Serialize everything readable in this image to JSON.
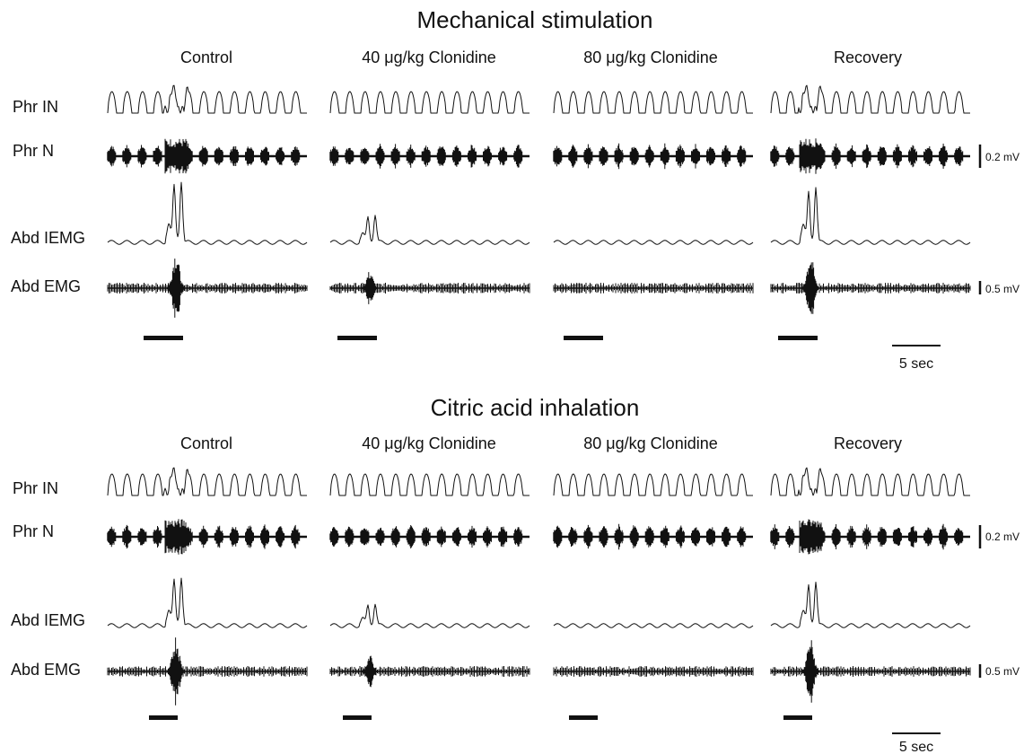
{
  "panels": [
    {
      "title": "Mechanical stimulation",
      "conditions": [
        "Control",
        "40 μg/kg Clonidine",
        "80 μg/kg Clonidine",
        "Recovery"
      ],
      "rows": [
        "Phr IN",
        "Phr N",
        "Abd IEMG",
        "Abd EMG"
      ],
      "phr_n_scale": "0.2 mV",
      "abd_emg_scale": "0.5 mV",
      "time_scale": "5 sec"
    },
    {
      "title": "Citric acid inhalation",
      "conditions": [
        "Control",
        "40 μg/kg Clonidine",
        "80 μg/kg Clonidine",
        "Recovery"
      ],
      "rows": [
        "Phr IN",
        "Phr N",
        "Abd IEMG",
        "Abd EMG"
      ],
      "phr_n_scale": "0.2 mV",
      "abd_emg_scale": "0.5 mV",
      "time_scale": "5 sec"
    }
  ],
  "colors": {
    "trace": "#111111",
    "background": "#ffffff"
  }
}
